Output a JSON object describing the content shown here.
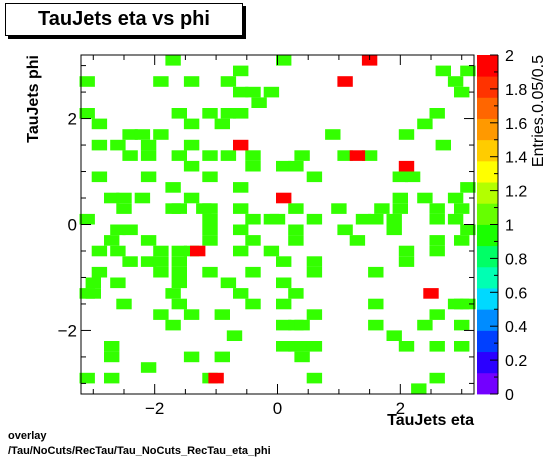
{
  "title": "TauJets eta vs phi",
  "footer": {
    "line1": "overlay",
    "line2": "/Tau/NoCuts/RecTau/Tau_NoCuts_RecTau_eta_phi"
  },
  "chart_data": {
    "type": "heatmap",
    "title": "TauJets eta vs phi",
    "xlabel": "TauJets eta",
    "ylabel": "TauJets phi",
    "zlabel": "Entries.0.05/0.5",
    "xlim": [
      -3.2,
      3.2
    ],
    "ylim": [
      -3.2,
      3.2
    ],
    "zlim": [
      0,
      2
    ],
    "bin_width": [
      0.25,
      0.2
    ],
    "x_ticks": [
      {
        "v": -2,
        "label": "−2"
      },
      {
        "v": 0,
        "label": "0"
      },
      {
        "v": 2,
        "label": "2"
      }
    ],
    "y_ticks": [
      {
        "v": -2,
        "label": "−2"
      },
      {
        "v": 0,
        "label": "0"
      },
      {
        "v": 2,
        "label": "2"
      }
    ],
    "z_ticks": [
      {
        "v": 0,
        "label": "0"
      },
      {
        "v": 0.2,
        "label": "0.2"
      },
      {
        "v": 0.4,
        "label": "0.4"
      },
      {
        "v": 0.6,
        "label": "0.6"
      },
      {
        "v": 0.8,
        "label": "0.8"
      },
      {
        "v": 1,
        "label": "1"
      },
      {
        "v": 1.2,
        "label": "1.2"
      },
      {
        "v": 1.4,
        "label": "1.4"
      },
      {
        "v": 1.6,
        "label": "1.6"
      },
      {
        "v": 1.8,
        "label": "1.8"
      },
      {
        "v": 2,
        "label": "2"
      }
    ],
    "colors": {
      "palette": [
        "#7300ff",
        "#2b00ff",
        "#0040ff",
        "#008cff",
        "#00d9ff",
        "#00ffb3",
        "#00ff66",
        "#1aff00",
        "#66ff00",
        "#b3ff00",
        "#ffff00",
        "#ffcc00",
        "#ff9900",
        "#ff6600",
        "#ff3300",
        "#ff0000"
      ],
      "value_1": "#33ff00",
      "value_2": "#ff0000"
    },
    "bins_value_2": [
      [
        1.5,
        3.1
      ],
      [
        1.1,
        2.7
      ],
      [
        -0.6,
        1.5
      ],
      [
        1.3,
        1.3
      ],
      [
        2.1,
        1.1
      ],
      [
        0.1,
        0.5
      ],
      [
        -1.3,
        -0.5
      ],
      [
        2.5,
        -1.3
      ],
      [
        -1.0,
        -2.9
      ]
    ],
    "bins_value_1": [
      [
        -1.7,
        3.1
      ],
      [
        0.1,
        3.1
      ],
      [
        -0.6,
        2.9
      ],
      [
        2.7,
        2.9
      ],
      [
        3.1,
        2.9
      ],
      [
        -3.1,
        2.7
      ],
      [
        -1.9,
        2.7
      ],
      [
        -1.4,
        2.7
      ],
      [
        -0.8,
        2.7
      ],
      [
        2.9,
        2.7
      ],
      [
        -0.6,
        2.5
      ],
      [
        -0.4,
        2.5
      ],
      [
        -0.1,
        2.5
      ],
      [
        3.0,
        2.5
      ],
      [
        -0.3,
        2.3
      ],
      [
        -3.1,
        2.1
      ],
      [
        -1.6,
        2.1
      ],
      [
        -1.1,
        2.1
      ],
      [
        -0.8,
        2.1
      ],
      [
        -0.6,
        2.1
      ],
      [
        2.6,
        2.1
      ],
      [
        -2.9,
        1.9
      ],
      [
        -1.4,
        1.9
      ],
      [
        -0.9,
        1.9
      ],
      [
        2.4,
        1.9
      ],
      [
        -2.4,
        1.7
      ],
      [
        -2.2,
        1.7
      ],
      [
        -1.9,
        1.7
      ],
      [
        0.9,
        1.7
      ],
      [
        2.1,
        1.7
      ],
      [
        -2.6,
        1.5
      ],
      [
        -2.9,
        1.5
      ],
      [
        -2.1,
        1.5
      ],
      [
        -1.4,
        1.5
      ],
      [
        2.7,
        1.5
      ],
      [
        -2.4,
        1.3
      ],
      [
        -2.1,
        1.3
      ],
      [
        -1.6,
        1.3
      ],
      [
        -1.1,
        1.3
      ],
      [
        -0.8,
        1.3
      ],
      [
        -0.4,
        1.3
      ],
      [
        0.4,
        1.3
      ],
      [
        1.1,
        1.3
      ],
      [
        1.5,
        1.3
      ],
      [
        -1.4,
        1.1
      ],
      [
        -0.4,
        1.1
      ],
      [
        0.1,
        1.1
      ],
      [
        0.3,
        1.1
      ],
      [
        -2.9,
        0.9
      ],
      [
        -2.1,
        0.9
      ],
      [
        -1.1,
        0.9
      ],
      [
        0.6,
        0.9
      ],
      [
        2.0,
        0.9
      ],
      [
        2.2,
        0.9
      ],
      [
        -1.7,
        0.7
      ],
      [
        -0.6,
        0.7
      ],
      [
        3.1,
        0.7
      ],
      [
        -2.7,
        0.5
      ],
      [
        -2.5,
        0.5
      ],
      [
        -2.2,
        0.5
      ],
      [
        -1.4,
        0.5
      ],
      [
        2.0,
        0.5
      ],
      [
        2.4,
        0.5
      ],
      [
        2.9,
        0.5
      ],
      [
        -2.5,
        0.3
      ],
      [
        -1.7,
        0.3
      ],
      [
        -1.6,
        0.3
      ],
      [
        -1.2,
        0.3
      ],
      [
        -1.1,
        0.3
      ],
      [
        -0.6,
        0.3
      ],
      [
        0.3,
        0.3
      ],
      [
        1.0,
        0.3
      ],
      [
        1.7,
        0.3
      ],
      [
        2.0,
        0.3
      ],
      [
        2.6,
        0.3
      ],
      [
        3.0,
        0.3
      ],
      [
        -3.1,
        0.1
      ],
      [
        -1.1,
        0.1
      ],
      [
        -0.4,
        0.1
      ],
      [
        -0.1,
        0.1
      ],
      [
        0.0,
        0.1
      ],
      [
        0.6,
        0.1
      ],
      [
        1.4,
        0.1
      ],
      [
        1.6,
        0.1
      ],
      [
        1.9,
        0.1
      ],
      [
        2.6,
        0.1
      ],
      [
        2.9,
        0.1
      ],
      [
        -2.6,
        -0.1
      ],
      [
        -2.4,
        -0.1
      ],
      [
        -1.1,
        -0.1
      ],
      [
        -0.6,
        -0.1
      ],
      [
        0.3,
        -0.1
      ],
      [
        1.1,
        -0.1
      ],
      [
        1.9,
        -0.1
      ],
      [
        3.1,
        -0.1
      ],
      [
        -2.7,
        -0.3
      ],
      [
        -2.1,
        -0.3
      ],
      [
        -1.1,
        -0.3
      ],
      [
        -0.4,
        -0.3
      ],
      [
        0.3,
        -0.3
      ],
      [
        1.3,
        -0.3
      ],
      [
        2.6,
        -0.3
      ],
      [
        3.0,
        -0.3
      ],
      [
        -2.9,
        -0.5
      ],
      [
        -2.6,
        -0.5
      ],
      [
        -1.9,
        -0.5
      ],
      [
        -1.6,
        -0.5
      ],
      [
        -1.4,
        -0.5
      ],
      [
        -0.6,
        -0.5
      ],
      [
        -0.1,
        -0.5
      ],
      [
        2.1,
        -0.5
      ],
      [
        2.6,
        -0.5
      ],
      [
        -2.4,
        -0.7
      ],
      [
        -2.1,
        -0.7
      ],
      [
        -1.9,
        -0.7
      ],
      [
        -1.6,
        -0.7
      ],
      [
        0.1,
        -0.7
      ],
      [
        0.6,
        -0.7
      ],
      [
        2.1,
        -0.7
      ],
      [
        -2.9,
        -0.9
      ],
      [
        -1.9,
        -0.9
      ],
      [
        -1.6,
        -0.9
      ],
      [
        -1.1,
        -0.9
      ],
      [
        -0.4,
        -0.9
      ],
      [
        0.6,
        -0.9
      ],
      [
        1.6,
        -0.9
      ],
      [
        -3.0,
        -1.1
      ],
      [
        -2.6,
        -1.1
      ],
      [
        -1.6,
        -1.1
      ],
      [
        -0.8,
        -1.1
      ],
      [
        0.1,
        -1.1
      ],
      [
        -3.1,
        -1.3
      ],
      [
        -3.0,
        -1.3
      ],
      [
        -1.7,
        -1.3
      ],
      [
        -0.6,
        -1.3
      ],
      [
        0.3,
        -1.3
      ],
      [
        -2.5,
        -1.5
      ],
      [
        -1.6,
        -1.5
      ],
      [
        -0.4,
        -1.5
      ],
      [
        0.1,
        -1.5
      ],
      [
        1.6,
        -1.5
      ],
      [
        2.9,
        -1.5
      ],
      [
        3.0,
        -1.5
      ],
      [
        3.1,
        -1.5
      ],
      [
        -1.9,
        -1.7
      ],
      [
        -1.4,
        -1.7
      ],
      [
        -0.9,
        -1.7
      ],
      [
        0.6,
        -1.7
      ],
      [
        2.6,
        -1.7
      ],
      [
        -1.7,
        -1.9
      ],
      [
        0.1,
        -1.9
      ],
      [
        0.3,
        -1.9
      ],
      [
        0.4,
        -1.9
      ],
      [
        1.6,
        -1.9
      ],
      [
        2.4,
        -1.9
      ],
      [
        3.0,
        -1.9
      ],
      [
        -0.7,
        -2.1
      ],
      [
        1.9,
        -2.1
      ],
      [
        -2.7,
        -2.3
      ],
      [
        0.1,
        -2.3
      ],
      [
        0.3,
        -2.3
      ],
      [
        0.4,
        -2.3
      ],
      [
        0.6,
        -2.3
      ],
      [
        2.1,
        -2.3
      ],
      [
        2.6,
        -2.3
      ],
      [
        3.0,
        -2.3
      ],
      [
        -2.7,
        -2.5
      ],
      [
        -1.4,
        -2.5
      ],
      [
        -0.9,
        -2.5
      ],
      [
        0.4,
        -2.5
      ],
      [
        -2.1,
        -2.7
      ],
      [
        -3.1,
        -2.9
      ],
      [
        -2.7,
        -2.9
      ],
      [
        -1.1,
        -2.9
      ],
      [
        0.6,
        -2.9
      ],
      [
        2.6,
        -2.9
      ],
      [
        2.3,
        -3.1
      ]
    ]
  }
}
